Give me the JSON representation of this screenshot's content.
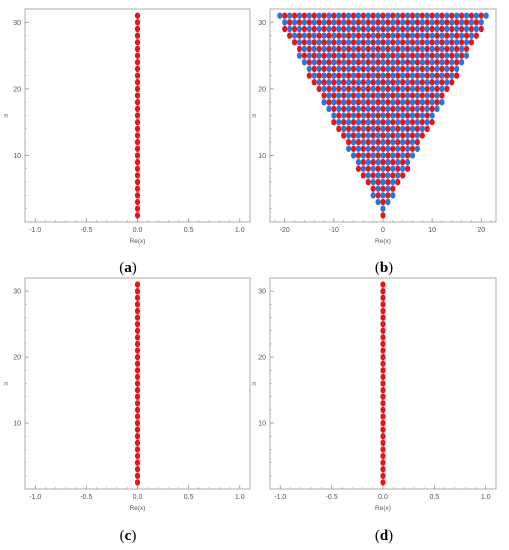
{
  "chart_data": [
    {
      "type": "scatter",
      "label": "(a)",
      "xlabel": "Re(x)",
      "ylabel": "n",
      "xlim": [
        -1.1,
        1.1
      ],
      "ylim": [
        0,
        32
      ],
      "xticks": [
        "-1.0",
        "-0.5",
        "0.0",
        "0.5",
        "1.0"
      ],
      "xtick_values": [
        -1.0,
        -0.5,
        0.0,
        0.5,
        1.0
      ],
      "yticks": [
        "10",
        "20",
        "30"
      ],
      "ytick_values": [
        10,
        20,
        30
      ],
      "grid": false,
      "series": [
        {
          "color": "#e8141a",
          "pattern": "column",
          "x_value": 0,
          "n_range": [
            1,
            31
          ]
        }
      ]
    },
    {
      "type": "scatter",
      "label": "(b)",
      "xlabel": "Re(x)",
      "ylabel": "n",
      "xlim": [
        -23,
        23
      ],
      "ylim": [
        0,
        32
      ],
      "xticks": [
        "-20",
        "-10",
        "0",
        "10",
        "20"
      ],
      "xtick_values": [
        -20,
        -10,
        0,
        10,
        20
      ],
      "yticks": [
        "10",
        "20",
        "30"
      ],
      "ytick_values": [
        10,
        20,
        30
      ],
      "grid": false,
      "series": [
        {
          "color": "#e8141a",
          "pattern": "triangle-lattice",
          "parity": "matches-n",
          "n_range": [
            1,
            31
          ]
        },
        {
          "color": "#2a74e0",
          "pattern": "triangle-lattice",
          "parity": "opposite-n",
          "n_range": [
            2,
            31
          ]
        }
      ],
      "envelope_x_at_n": [
        [
          1,
          0
        ],
        [
          31,
          21.5
        ]
      ]
    },
    {
      "type": "scatter",
      "label": "(c)",
      "xlabel": "Re(x)",
      "ylabel": "n",
      "xlim": [
        -1.1,
        1.1
      ],
      "ylim": [
        0,
        32
      ],
      "xticks": [
        "-1.0",
        "-0.5",
        "0.0",
        "0.5",
        "1.0"
      ],
      "xtick_values": [
        -1.0,
        -0.5,
        0.0,
        0.5,
        1.0
      ],
      "yticks": [
        "10",
        "20",
        "30"
      ],
      "ytick_values": [
        10,
        20,
        30
      ],
      "grid": false,
      "series": [
        {
          "color": "#e8141a",
          "pattern": "column",
          "x_value": 0,
          "n_range": [
            1,
            31
          ]
        }
      ]
    },
    {
      "type": "scatter",
      "label": "(d)",
      "xlabel": "Re(x)",
      "ylabel": "n",
      "xlim": [
        -1.1,
        1.1
      ],
      "ylim": [
        0,
        32
      ],
      "xticks": [
        "-1.0",
        "-0.5",
        "0.0",
        "0.5",
        "1.0"
      ],
      "xtick_values": [
        -1.0,
        -0.5,
        0.0,
        0.5,
        1.0
      ],
      "yticks": [
        "10",
        "20",
        "30"
      ],
      "ytick_values": [
        10,
        20,
        30
      ],
      "grid": false,
      "series": [
        {
          "color": "#e8141a",
          "pattern": "column",
          "x_value": 0,
          "n_range": [
            1,
            31
          ]
        }
      ]
    }
  ],
  "colors": {
    "axis": "#999999",
    "text": "#555555",
    "red": "#e8141a",
    "blue": "#2a74e0"
  }
}
